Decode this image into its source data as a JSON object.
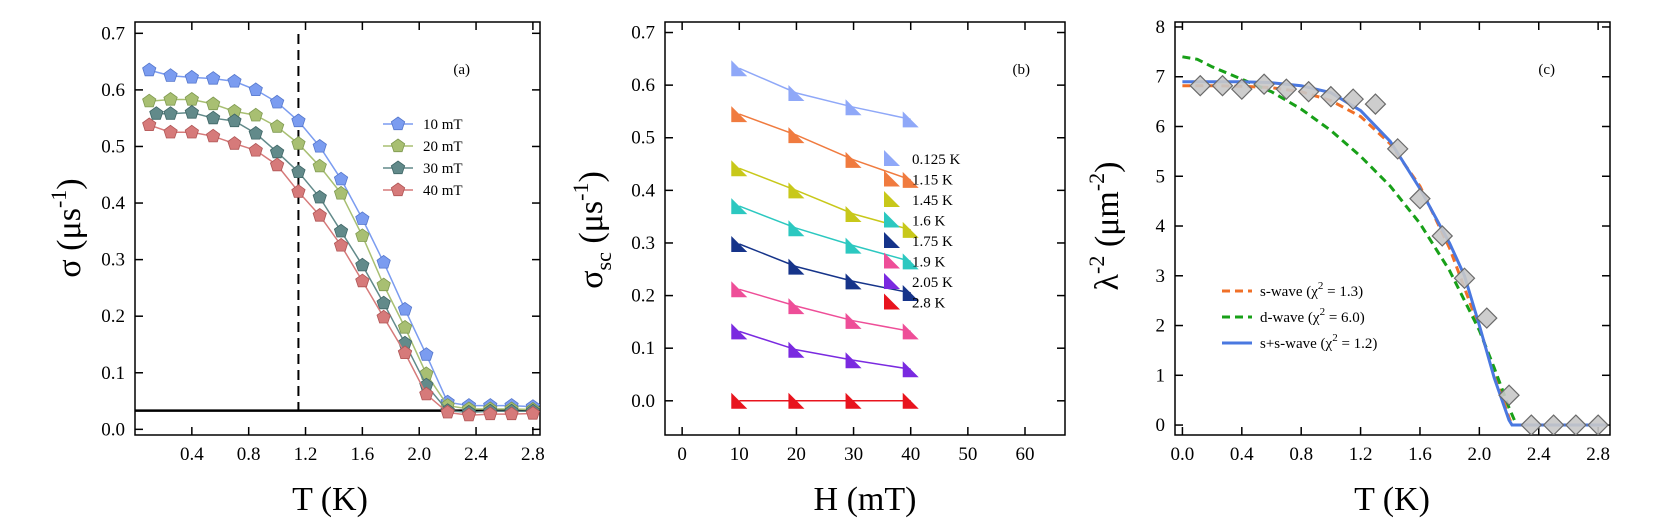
{
  "chart_data": [
    {
      "type": "line",
      "panel_label": "(a)",
      "xlabel": "T (K)",
      "ylabel": "σ (μs",
      "ylabel_sup": "-1",
      "ylabel_tail": ")",
      "xlim": [
        0.0,
        2.85
      ],
      "ylim": [
        -0.01,
        0.72
      ],
      "xticks": [
        0.4,
        0.8,
        1.2,
        1.6,
        2.0,
        2.4,
        2.8
      ],
      "xtick_labels": [
        "0.4",
        "0.8",
        "1.2",
        "1.6",
        "2.0",
        "2.4",
        "2.8"
      ],
      "yticks": [
        0.0,
        0.1,
        0.2,
        0.3,
        0.4,
        0.5,
        0.6,
        0.7
      ],
      "ytick_labels": [
        "0.0",
        "0.1",
        "0.2",
        "0.3",
        "0.4",
        "0.5",
        "0.6",
        "0.7"
      ],
      "marker": "pentagon",
      "series": [
        {
          "name": "10 mT",
          "color": "#7b9cf0",
          "edge": "#5577cc",
          "x": [
            0.1,
            0.25,
            0.4,
            0.55,
            0.7,
            0.85,
            1.0,
            1.15,
            1.3,
            1.45,
            1.6,
            1.75,
            1.9,
            2.05,
            2.2,
            2.35,
            2.5,
            2.65,
            2.8
          ],
          "y": [
            0.635,
            0.625,
            0.622,
            0.62,
            0.615,
            0.6,
            0.578,
            0.545,
            0.5,
            0.442,
            0.372,
            0.295,
            0.212,
            0.132,
            0.048,
            0.042,
            0.042,
            0.042,
            0.04
          ]
        },
        {
          "name": "20 mT",
          "color": "#a8bf72",
          "edge": "#7f9a50",
          "x": [
            0.1,
            0.25,
            0.4,
            0.55,
            0.7,
            0.85,
            1.0,
            1.15,
            1.3,
            1.45,
            1.6,
            1.75,
            1.9,
            2.05,
            2.2,
            2.35,
            2.5,
            2.65,
            2.8
          ],
          "y": [
            0.58,
            0.583,
            0.583,
            0.575,
            0.562,
            0.555,
            0.535,
            0.505,
            0.465,
            0.417,
            0.342,
            0.255,
            0.18,
            0.098,
            0.042,
            0.036,
            0.036,
            0.036,
            0.035
          ]
        },
        {
          "name": "30 mT",
          "color": "#628a8a",
          "edge": "#3f6666",
          "x": [
            0.15,
            0.25,
            0.4,
            0.55,
            0.7,
            0.85,
            1.0,
            1.15,
            1.3,
            1.45,
            1.6,
            1.75,
            1.9,
            2.05,
            2.2,
            2.35,
            2.5,
            2.65,
            2.8
          ],
          "y": [
            0.558,
            0.558,
            0.56,
            0.55,
            0.545,
            0.523,
            0.49,
            0.455,
            0.41,
            0.35,
            0.29,
            0.223,
            0.152,
            0.078,
            0.033,
            0.03,
            0.032,
            0.032,
            0.032
          ]
        },
        {
          "name": "40 mT",
          "color": "#d67a7a",
          "edge": "#b05555",
          "x": [
            0.1,
            0.25,
            0.4,
            0.55,
            0.7,
            0.85,
            1.0,
            1.15,
            1.3,
            1.45,
            1.6,
            1.75,
            1.9,
            2.05,
            2.2,
            2.35,
            2.5,
            2.65,
            2.8
          ],
          "y": [
            0.538,
            0.525,
            0.525,
            0.518,
            0.505,
            0.493,
            0.467,
            0.42,
            0.378,
            0.325,
            0.262,
            0.198,
            0.135,
            0.062,
            0.03,
            0.025,
            0.027,
            0.027,
            0.028
          ]
        }
      ],
      "hline_y": 0.033,
      "vline_x": 1.15
    },
    {
      "type": "line",
      "panel_label": "(b)",
      "xlabel": "H (mT)",
      "ylabel": "σ",
      "ylabel_sub": "sc",
      "ylabel_tail": " (μs",
      "ylabel_sup": "-1",
      "ylabel_end": ")",
      "xlim": [
        -3,
        67
      ],
      "ylim": [
        -0.065,
        0.72
      ],
      "xticks": [
        0,
        10,
        20,
        30,
        40,
        50,
        60
      ],
      "xtick_labels": [
        "0",
        "10",
        "20",
        "30",
        "40",
        "50",
        "60"
      ],
      "yticks": [
        0.0,
        0.1,
        0.2,
        0.3,
        0.4,
        0.5,
        0.6,
        0.7
      ],
      "ytick_labels": [
        "0.0",
        "0.1",
        "0.2",
        "0.3",
        "0.4",
        "0.5",
        "0.6",
        "0.7"
      ],
      "marker": "triangle",
      "x": [
        10,
        20,
        30,
        40
      ],
      "series": [
        {
          "name": "0.125 K",
          "color": "#8fa8f8",
          "values": [
            0.632,
            0.585,
            0.558,
            0.535
          ]
        },
        {
          "name": "1.15 K",
          "color": "#f07b3f",
          "values": [
            0.545,
            0.505,
            0.458,
            0.42
          ]
        },
        {
          "name": "1.45 K",
          "color": "#c8c81a",
          "values": [
            0.442,
            0.4,
            0.355,
            0.325
          ]
        },
        {
          "name": "1.6 K",
          "color": "#2cc8c0",
          "values": [
            0.37,
            0.328,
            0.295,
            0.265
          ]
        },
        {
          "name": "1.75 K",
          "color": "#16348a",
          "values": [
            0.298,
            0.255,
            0.227,
            0.205
          ]
        },
        {
          "name": "1.9 K",
          "color": "#ee4e98",
          "values": [
            0.212,
            0.18,
            0.152,
            0.132
          ]
        },
        {
          "name": "2.05 K",
          "color": "#7a2ae0",
          "values": [
            0.132,
            0.097,
            0.077,
            0.06
          ]
        },
        {
          "name": "2.8 K",
          "color": "#e8141e",
          "values": [
            0.0,
            0.0,
            0.0,
            0.0
          ]
        }
      ]
    },
    {
      "type": "line",
      "panel_label": "(c)",
      "xlabel": "T (K)",
      "ylabel": "λ",
      "ylabel_sup": "-2",
      "ylabel_tail": " (μm",
      "ylabel_sup2": "-2",
      "ylabel_end": ")",
      "xlim": [
        -0.05,
        2.88
      ],
      "ylim": [
        -0.2,
        8.1
      ],
      "xticks": [
        0.0,
        0.4,
        0.8,
        1.2,
        1.6,
        2.0,
        2.4,
        2.8
      ],
      "xtick_labels": [
        "0.0",
        "0.4",
        "0.8",
        "1.2",
        "1.6",
        "2.0",
        "2.4",
        "2.8"
      ],
      "yticks": [
        0,
        1,
        2,
        3,
        4,
        5,
        6,
        7,
        8
      ],
      "ytick_labels": [
        "0",
        "1",
        "2",
        "3",
        "4",
        "5",
        "6",
        "7",
        "8"
      ],
      "data_points": {
        "marker": "diamond",
        "color": "#c8c8c8",
        "edge": "#6a6a6a",
        "x": [
          0.12,
          0.27,
          0.4,
          0.55,
          0.7,
          0.85,
          1.0,
          1.15,
          1.3,
          1.45,
          1.6,
          1.75,
          1.9,
          2.05,
          2.2,
          2.35,
          2.5,
          2.65,
          2.8
        ],
        "y": [
          6.82,
          6.82,
          6.75,
          6.85,
          6.75,
          6.7,
          6.6,
          6.55,
          6.45,
          5.55,
          4.55,
          3.8,
          2.95,
          2.15,
          0.6,
          0.0,
          0.0,
          0.0,
          0.0
        ]
      },
      "fits": [
        {
          "name": "s-wave",
          "chi2": "1.3",
          "color": "#f07028",
          "dash": true,
          "x": [
            0.0,
            0.2,
            0.4,
            0.6,
            0.8,
            1.0,
            1.2,
            1.4,
            1.6,
            1.8,
            2.0,
            2.1,
            2.2,
            2.22,
            2.5,
            2.85
          ],
          "y": [
            6.82,
            6.82,
            6.81,
            6.78,
            6.7,
            6.52,
            6.2,
            5.65,
            4.8,
            3.55,
            1.95,
            1.05,
            0.15,
            0.0,
            0.0,
            0.0
          ]
        },
        {
          "name": "d-wave",
          "chi2": "6.0",
          "color": "#18a018",
          "dash": true,
          "x": [
            0.0,
            0.1,
            0.2,
            0.4,
            0.6,
            0.8,
            1.0,
            1.2,
            1.4,
            1.6,
            1.8,
            2.0,
            2.1,
            2.2,
            2.25,
            2.5,
            2.85
          ],
          "y": [
            7.4,
            7.35,
            7.2,
            6.95,
            6.7,
            6.35,
            5.92,
            5.4,
            4.8,
            4.05,
            3.1,
            1.9,
            1.15,
            0.35,
            0.0,
            0.0,
            0.0
          ]
        },
        {
          "name": "s+s-wave",
          "chi2": "1.2",
          "color": "#4a78e0",
          "dash": false,
          "x": [
            0.0,
            0.2,
            0.4,
            0.6,
            0.8,
            1.0,
            1.2,
            1.4,
            1.6,
            1.8,
            1.9,
            2.0,
            2.1,
            2.2,
            2.22,
            2.5,
            2.85
          ],
          "y": [
            6.9,
            6.9,
            6.9,
            6.88,
            6.82,
            6.68,
            6.32,
            5.7,
            4.75,
            3.65,
            3.0,
            2.0,
            0.95,
            0.1,
            0.0,
            0.0,
            0.0
          ]
        }
      ]
    }
  ]
}
